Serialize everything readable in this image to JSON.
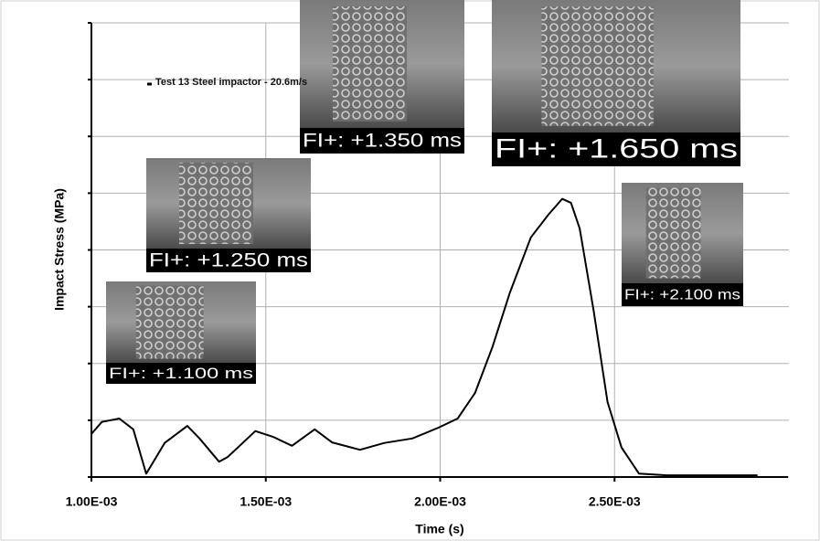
{
  "chart_data": {
    "type": "line",
    "x_label": "Time (s)",
    "y_label": "Impact Stress (MPa)",
    "x": [
      0.001,
      0.00103,
      0.00108,
      0.00112,
      0.001157,
      0.00117,
      0.00121,
      0.001275,
      0.00131,
      0.001366,
      0.00139,
      0.00142,
      0.00147,
      0.00152,
      0.001575,
      0.00164,
      0.00169,
      0.00177,
      0.00184,
      0.00192,
      0.001995,
      0.00205,
      0.0021,
      0.00215,
      0.0022,
      0.00226,
      0.00231,
      0.00235,
      0.002375,
      0.0024,
      0.00244,
      0.00248,
      0.00252,
      0.00257,
      0.00265,
      0.00291
    ],
    "series": [
      {
        "name": "Test 13 Steel impactor - 20.6m/s",
        "color": "#000000",
        "values": [
          0.76,
          0.97,
          1.03,
          0.84,
          0.06,
          0.19,
          0.6,
          0.9,
          0.68,
          0.27,
          0.35,
          0.52,
          0.81,
          0.71,
          0.55,
          0.84,
          0.61,
          0.48,
          0.6,
          0.68,
          0.87,
          1.03,
          1.48,
          2.29,
          3.25,
          4.22,
          4.62,
          4.9,
          4.83,
          4.38,
          2.93,
          1.32,
          0.52,
          0.06,
          0.03,
          0.03
        ]
      }
    ],
    "xlim": [
      0.001,
      0.003
    ],
    "xticks": [
      {
        "value": 0.001,
        "label": "1.00E-03"
      },
      {
        "value": 0.0015,
        "label": "1.50E-03"
      },
      {
        "value": 0.002,
        "label": "2.00E-03"
      },
      {
        "value": 0.0025,
        "label": "2.50E-03"
      }
    ],
    "ylim": [
      0,
      8
    ],
    "yticks": [
      0,
      1,
      2,
      3,
      4,
      5,
      6,
      7,
      8
    ],
    "grid": true,
    "annotations": [
      "FI+: +1.100 ms",
      "FI+: +1.250 ms",
      "FI+: +1.350 ms",
      "FI+: +1.650 ms",
      "FI+: +2.100 ms"
    ]
  }
}
